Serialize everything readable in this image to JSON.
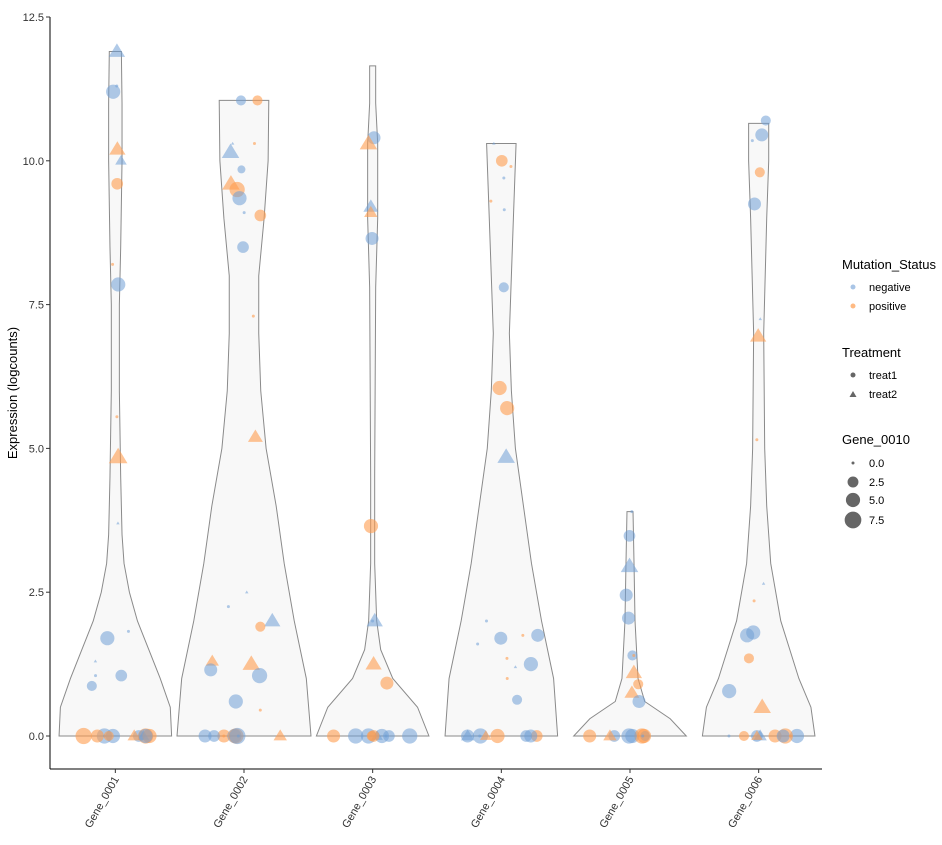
{
  "chart_data": {
    "type": "violin",
    "ylabel": "Expression (logcounts)",
    "xlabel": "",
    "ylim": [
      -0.6,
      12.5
    ],
    "yticks": [
      "0.0",
      "2.5",
      "5.0",
      "7.5",
      "10.0",
      "12.5"
    ],
    "ytick_values": [
      0,
      2.5,
      5,
      7.5,
      10,
      12.5
    ],
    "grid": false,
    "categories": [
      "Gene_0001",
      "Gene_0002",
      "Gene_0003",
      "Gene_0004",
      "Gene_0005",
      "Gene_0006"
    ],
    "violin_density": [
      [
        [
          0,
          0.84
        ],
        [
          0.5,
          0.82
        ],
        [
          1,
          0.67
        ],
        [
          1.5,
          0.5
        ],
        [
          2,
          0.33
        ],
        [
          2.5,
          0.21
        ],
        [
          3,
          0.13
        ],
        [
          3.5,
          0.1
        ],
        [
          4.5,
          0.08
        ],
        [
          6,
          0.06
        ],
        [
          7.5,
          0.06
        ],
        [
          8.5,
          0.08
        ],
        [
          10,
          0.1
        ],
        [
          11,
          0.1
        ],
        [
          11.9,
          0.09
        ]
      ],
      [
        [
          0,
          1
        ],
        [
          1,
          0.93
        ],
        [
          2,
          0.75
        ],
        [
          3,
          0.6
        ],
        [
          4,
          0.48
        ],
        [
          5,
          0.33
        ],
        [
          6,
          0.25
        ],
        [
          7,
          0.22
        ],
        [
          8,
          0.22
        ],
        [
          9,
          0.3
        ],
        [
          10,
          0.36
        ],
        [
          11.05,
          0.37
        ]
      ],
      [
        [
          0,
          0.84
        ],
        [
          0.5,
          0.67
        ],
        [
          1,
          0.3
        ],
        [
          1.5,
          0.12
        ],
        [
          2,
          0.06
        ],
        [
          3,
          0.03
        ],
        [
          4.5,
          0.03
        ],
        [
          7.8,
          0.045
        ],
        [
          9,
          0.075
        ],
        [
          10.3,
          0.075
        ],
        [
          11,
          0.045
        ],
        [
          11.65,
          0.045
        ]
      ],
      [
        [
          0,
          0.84
        ],
        [
          1,
          0.78
        ],
        [
          2,
          0.6
        ],
        [
          3,
          0.45
        ],
        [
          4,
          0.33
        ],
        [
          5,
          0.21
        ],
        [
          6,
          0.15
        ],
        [
          7,
          0.12
        ],
        [
          8,
          0.15
        ],
        [
          9,
          0.18
        ],
        [
          10.3,
          0.22
        ]
      ],
      [
        [
          0,
          0.84
        ],
        [
          0.3,
          0.6
        ],
        [
          0.6,
          0.22
        ],
        [
          1,
          0.12
        ],
        [
          2,
          0.075
        ],
        [
          3,
          0.06
        ],
        [
          3.9,
          0.045
        ]
      ],
      [
        [
          0,
          0.84
        ],
        [
          0.5,
          0.78
        ],
        [
          1,
          0.6
        ],
        [
          2,
          0.33
        ],
        [
          3,
          0.18
        ],
        [
          4,
          0.12
        ],
        [
          5,
          0.09
        ],
        [
          7,
          0.075
        ],
        [
          9,
          0.12
        ],
        [
          10,
          0.15
        ],
        [
          10.65,
          0.15
        ]
      ]
    ],
    "points_columns": [
      "expression",
      "Mutation_Status",
      "Treatment",
      "Gene_0010"
    ],
    "points": [
      [
        [
          11.9,
          "negative",
          "treat2",
          5
        ],
        [
          11.2,
          "negative",
          "treat1",
          5
        ],
        [
          11.3,
          "negative",
          "treat1",
          0
        ],
        [
          10.0,
          "negative",
          "treat2",
          2
        ],
        [
          10.2,
          "positive",
          "treat2",
          5
        ],
        [
          9.6,
          "positive",
          "treat1",
          3
        ],
        [
          8.2,
          "positive",
          "treat1",
          0
        ],
        [
          7.85,
          "negative",
          "treat1",
          5
        ],
        [
          5.55,
          "positive",
          "treat1",
          0
        ],
        [
          4.85,
          "positive",
          "treat2",
          7
        ],
        [
          3.7,
          "negative",
          "treat2",
          0
        ],
        [
          1.7,
          "negative",
          "treat1",
          5
        ],
        [
          1.82,
          "negative",
          "treat1",
          0
        ],
        [
          1.3,
          "negative",
          "treat2",
          0
        ],
        [
          1.05,
          "negative",
          "treat1",
          3
        ],
        [
          1.05,
          "negative",
          "treat1",
          0
        ],
        [
          0.87,
          "negative",
          "treat1",
          2
        ],
        [
          0,
          "negative",
          "treat1",
          3
        ],
        [
          0,
          "positive",
          "treat1",
          6
        ],
        [
          0,
          "negative",
          "treat2",
          2
        ],
        [
          0,
          "positive",
          "treat1",
          7
        ],
        [
          0,
          "negative",
          "treat1",
          5
        ],
        [
          0,
          "positive",
          "treat2",
          3
        ],
        [
          0,
          "negative",
          "treat1",
          6
        ],
        [
          0,
          "positive",
          "treat1",
          4
        ],
        [
          0,
          "negative",
          "treat1",
          0
        ],
        [
          0,
          "positive",
          "treat1",
          5
        ],
        [
          0,
          "negative",
          "treat1",
          5
        ],
        [
          0,
          "positive",
          "treat1",
          2
        ]
      ],
      [
        [
          11.05,
          "negative",
          "treat1",
          2
        ],
        [
          11.05,
          "positive",
          "treat1",
          2
        ],
        [
          10.15,
          "negative",
          "treat2",
          6
        ],
        [
          9.6,
          "positive",
          "treat2",
          6
        ],
        [
          9.5,
          "positive",
          "treat1",
          6
        ],
        [
          9.35,
          "negative",
          "treat1",
          5
        ],
        [
          9.1,
          "negative",
          "treat1",
          0
        ],
        [
          9.05,
          "positive",
          "treat1",
          3
        ],
        [
          8.5,
          "negative",
          "treat1",
          3
        ],
        [
          10.3,
          "positive",
          "treat1",
          0
        ],
        [
          10.3,
          "negative",
          "treat2",
          0
        ],
        [
          9.85,
          "negative",
          "treat1",
          1
        ],
        [
          7.3,
          "positive",
          "treat1",
          0
        ],
        [
          5.2,
          "positive",
          "treat2",
          4
        ],
        [
          2.25,
          "negative",
          "treat1",
          0
        ],
        [
          2.5,
          "negative",
          "treat2",
          0
        ],
        [
          2.0,
          "negative",
          "treat2",
          5
        ],
        [
          1.9,
          "positive",
          "treat1",
          2
        ],
        [
          1.3,
          "positive",
          "treat2",
          3
        ],
        [
          1.25,
          "positive",
          "treat2",
          6
        ],
        [
          1.15,
          "negative",
          "treat1",
          4
        ],
        [
          1.05,
          "negative",
          "treat1",
          6
        ],
        [
          0.6,
          "negative",
          "treat1",
          5
        ],
        [
          0.45,
          "positive",
          "treat1",
          0
        ],
        [
          0,
          "positive",
          "treat1",
          4
        ],
        [
          0,
          "negative",
          "treat1",
          5
        ],
        [
          0,
          "positive",
          "treat1",
          6
        ],
        [
          0,
          "negative",
          "treat1",
          7
        ],
        [
          0,
          "positive",
          "treat2",
          3
        ],
        [
          0,
          "negative",
          "treat1",
          0
        ],
        [
          0,
          "negative",
          "treat1",
          4
        ],
        [
          0,
          "positive",
          "treat1",
          0
        ],
        [
          0,
          "negative",
          "treat1",
          3
        ]
      ],
      [
        [
          10.4,
          "negative",
          "treat1",
          4
        ],
        [
          10.3,
          "positive",
          "treat2",
          6
        ],
        [
          9.2,
          "negative",
          "treat2",
          4
        ],
        [
          9.1,
          "positive",
          "treat2",
          3
        ],
        [
          8.65,
          "negative",
          "treat1",
          4
        ],
        [
          3.65,
          "positive",
          "treat1",
          5
        ],
        [
          2.0,
          "negative",
          "treat2",
          5
        ],
        [
          2.0,
          "negative",
          "treat1",
          0
        ],
        [
          1.25,
          "positive",
          "treat2",
          5
        ],
        [
          0.92,
          "positive",
          "treat1",
          4
        ],
        [
          0,
          "negative",
          "treat1",
          5
        ],
        [
          0,
          "negative",
          "treat1",
          3
        ],
        [
          0,
          "positive",
          "treat1",
          4
        ],
        [
          0,
          "negative",
          "treat2",
          2
        ],
        [
          0,
          "negative",
          "treat1",
          6
        ],
        [
          0,
          "positive",
          "treat1",
          3
        ],
        [
          0,
          "negative",
          "treat1",
          0
        ],
        [
          0,
          "negative",
          "treat1",
          6
        ],
        [
          0,
          "positive",
          "treat1",
          2
        ],
        [
          0,
          "negative",
          "treat1",
          6
        ]
      ],
      [
        [
          10.3,
          "negative",
          "treat2",
          0
        ],
        [
          10.0,
          "positive",
          "treat1",
          3
        ],
        [
          9.9,
          "positive",
          "treat1",
          0
        ],
        [
          9.7,
          "negative",
          "treat1",
          0
        ],
        [
          9.3,
          "positive",
          "treat1",
          0
        ],
        [
          9.15,
          "negative",
          "treat1",
          0
        ],
        [
          7.8,
          "negative",
          "treat1",
          2
        ],
        [
          6.05,
          "positive",
          "treat1",
          5
        ],
        [
          5.7,
          "positive",
          "treat1",
          5
        ],
        [
          4.85,
          "negative",
          "treat2",
          6
        ],
        [
          2.0,
          "negative",
          "treat1",
          0
        ],
        [
          1.75,
          "positive",
          "treat1",
          0
        ],
        [
          1.75,
          "negative",
          "treat1",
          4
        ],
        [
          1.7,
          "negative",
          "treat1",
          4
        ],
        [
          1.6,
          "negative",
          "treat1",
          0
        ],
        [
          1.35,
          "positive",
          "treat1",
          0
        ],
        [
          1.2,
          "negative",
          "treat2",
          0
        ],
        [
          1.25,
          "negative",
          "treat1",
          5
        ],
        [
          1.0,
          "positive",
          "treat1",
          0
        ],
        [
          0.63,
          "negative",
          "treat1",
          2
        ],
        [
          0,
          "negative",
          "treat1",
          4
        ],
        [
          0,
          "positive",
          "treat1",
          3
        ],
        [
          0,
          "negative",
          "treat2",
          3
        ],
        [
          0,
          "negative",
          "treat1",
          6
        ],
        [
          0,
          "positive",
          "treat1",
          5
        ],
        [
          0,
          "negative",
          "treat1",
          3
        ],
        [
          0,
          "positive",
          "treat2",
          2
        ],
        [
          0,
          "negative",
          "treat1",
          4
        ],
        [
          0,
          "negative",
          "treat1",
          0
        ]
      ],
      [
        [
          3.9,
          "negative",
          "treat1",
          0
        ],
        [
          3.48,
          "negative",
          "treat1",
          3
        ],
        [
          2.95,
          "negative",
          "treat2",
          6
        ],
        [
          2.45,
          "negative",
          "treat1",
          4
        ],
        [
          2.05,
          "negative",
          "treat1",
          4
        ],
        [
          1.4,
          "negative",
          "treat1",
          2
        ],
        [
          1.4,
          "positive",
          "treat1",
          0
        ],
        [
          1.1,
          "positive",
          "treat2",
          5
        ],
        [
          0.9,
          "positive",
          "treat1",
          2
        ],
        [
          0.75,
          "positive",
          "treat2",
          4
        ],
        [
          0.6,
          "negative",
          "treat1",
          4
        ],
        [
          0,
          "negative",
          "treat1",
          3
        ],
        [
          0,
          "positive",
          "treat1",
          4
        ],
        [
          0,
          "positive",
          "treat2",
          3
        ],
        [
          0,
          "negative",
          "treat1",
          5
        ],
        [
          0,
          "positive",
          "treat1",
          6
        ],
        [
          0,
          "negative",
          "treat1",
          2
        ],
        [
          0,
          "positive",
          "treat1",
          5
        ],
        [
          0,
          "negative",
          "treat1",
          6
        ],
        [
          0,
          "negative",
          "treat1",
          0
        ]
      ],
      [
        [
          10.7,
          "negative",
          "treat1",
          2
        ],
        [
          10.45,
          "negative",
          "treat1",
          4
        ],
        [
          10.35,
          "negative",
          "treat1",
          0
        ],
        [
          9.8,
          "positive",
          "treat1",
          2
        ],
        [
          9.25,
          "negative",
          "treat1",
          4
        ],
        [
          7.25,
          "negative",
          "treat2",
          0
        ],
        [
          6.95,
          "positive",
          "treat2",
          5
        ],
        [
          5.15,
          "positive",
          "treat1",
          0
        ],
        [
          2.65,
          "negative",
          "treat2",
          0
        ],
        [
          2.35,
          "positive",
          "treat1",
          0
        ],
        [
          1.8,
          "negative",
          "treat1",
          5
        ],
        [
          1.75,
          "negative",
          "treat1",
          5
        ],
        [
          1.35,
          "positive",
          "treat1",
          2
        ],
        [
          0.78,
          "negative",
          "treat1",
          5
        ],
        [
          0.5,
          "positive",
          "treat2",
          6
        ],
        [
          0,
          "negative",
          "treat1",
          5
        ],
        [
          0,
          "positive",
          "treat1",
          4
        ],
        [
          0,
          "negative",
          "treat2",
          3
        ],
        [
          0,
          "positive",
          "treat1",
          6
        ],
        [
          0,
          "negative",
          "treat1",
          4
        ],
        [
          0,
          "positive",
          "treat1",
          2
        ],
        [
          0,
          "negative",
          "treat1",
          3
        ],
        [
          0,
          "positive",
          "treat2",
          2
        ],
        [
          0,
          "negative",
          "treat1",
          0
        ],
        [
          0,
          "positive",
          "treat1",
          0
        ]
      ]
    ],
    "colors": {
      "negative": "#6f9fd6",
      "positive": "#ff9d4f",
      "violin_fill": "#f8f8f8",
      "violin_stroke": "#8a8a8a"
    }
  },
  "legend": {
    "mutation": {
      "title": "Mutation_Status",
      "items": [
        "negative",
        "positive"
      ]
    },
    "treatment": {
      "title": "Treatment",
      "items": [
        "treat1",
        "treat2"
      ]
    },
    "size": {
      "title": "Gene_0010",
      "items": [
        "0.0",
        "2.5",
        "5.0",
        "7.5"
      ],
      "values": [
        0,
        2.5,
        5,
        7.5
      ]
    }
  }
}
